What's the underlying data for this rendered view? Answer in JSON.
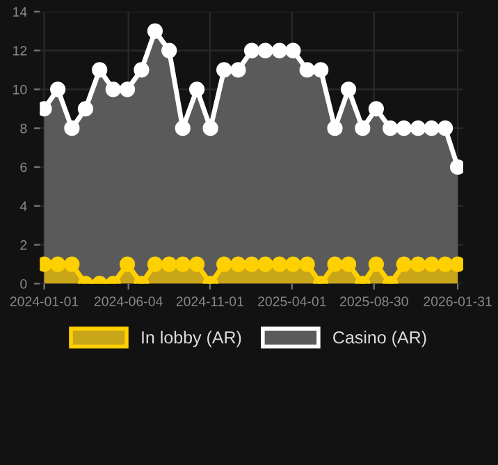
{
  "chart_data": {
    "type": "area",
    "x": [
      "2024-01-01",
      "2024-01-26",
      "2024-02-21",
      "2024-03-17",
      "2024-04-12",
      "2024-05-07",
      "2024-06-02",
      "2024-06-28",
      "2024-07-23",
      "2024-08-18",
      "2024-09-12",
      "2024-10-08",
      "2024-11-02",
      "2024-11-27",
      "2024-12-23",
      "2025-01-17",
      "2025-02-11",
      "2025-03-09",
      "2025-04-03",
      "2025-04-29",
      "2025-05-24",
      "2025-06-19",
      "2025-07-14",
      "2025-08-09",
      "2025-09-03",
      "2025-09-29",
      "2025-10-24",
      "2025-11-19",
      "2025-12-14",
      "2026-01-08",
      "2026-01-31"
    ],
    "series": [
      {
        "name": "In lobby (AR)",
        "color": "#ffd000",
        "values": [
          1,
          1,
          1,
          0,
          0,
          0,
          1,
          0,
          1,
          1,
          1,
          1,
          0,
          1,
          1,
          1,
          1,
          1,
          1,
          1,
          0,
          1,
          1,
          0,
          1,
          0,
          1,
          1,
          1,
          1,
          1
        ]
      },
      {
        "name": "Casino (AR)",
        "color": "#ffffff",
        "values": [
          9,
          10,
          8,
          9,
          11,
          10,
          10,
          11,
          13,
          12,
          8,
          10,
          8,
          11,
          11,
          12,
          12,
          12,
          12,
          11,
          11,
          8,
          10,
          8,
          9,
          8,
          8,
          8,
          8,
          8,
          6
        ]
      }
    ],
    "xlim": [
      "2023-12-24",
      "2026-02-10"
    ],
    "xticks": [
      {
        "value": "2024-01-01",
        "label": "2024-01-01"
      },
      {
        "value": "2024-06-04",
        "label": "2024-06-04"
      },
      {
        "value": "2024-11-01",
        "label": "2024-11-01"
      },
      {
        "value": "2025-04-01",
        "label": "2025-04-01"
      },
      {
        "value": "2025-08-30",
        "label": "2025-08-30"
      },
      {
        "value": "2026-01-31",
        "label": "2026-01-31"
      }
    ],
    "ylim": [
      0,
      14
    ],
    "yticks": [
      0,
      2,
      4,
      6,
      8,
      10,
      12,
      14
    ],
    "grid": true,
    "legend": "bottom",
    "marker": "circle",
    "line_style": "solid"
  }
}
